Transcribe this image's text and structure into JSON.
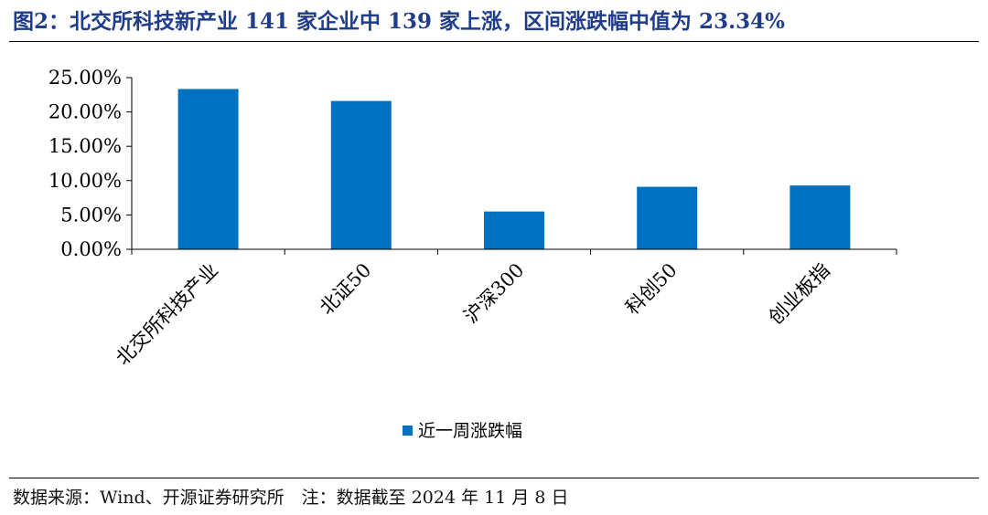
{
  "title": "图2：北交所科技新产业 141 家企业中 139 家上涨，区间涨跌幅中值为 23.34%",
  "source": "数据来源：Wind、开源证券研究所　注：数据截至 2024 年 11 月 8 日",
  "chart_data": {
    "type": "bar",
    "categories": [
      "北交所科技产业",
      "北证50",
      "沪深300",
      "科创50",
      "创业板指"
    ],
    "series": [
      {
        "name": "近一周涨跌幅",
        "values": [
          23.34,
          21.6,
          5.5,
          9.1,
          9.3
        ],
        "color": "#0070c0"
      }
    ],
    "ylim": [
      0,
      25
    ],
    "yticks": [
      "0.00%",
      "5.00%",
      "10.00%",
      "15.00%",
      "20.00%",
      "25.00%"
    ],
    "ytick_values": [
      0,
      5,
      10,
      15,
      20,
      25
    ],
    "legend": "bottom-center",
    "grid": false
  }
}
